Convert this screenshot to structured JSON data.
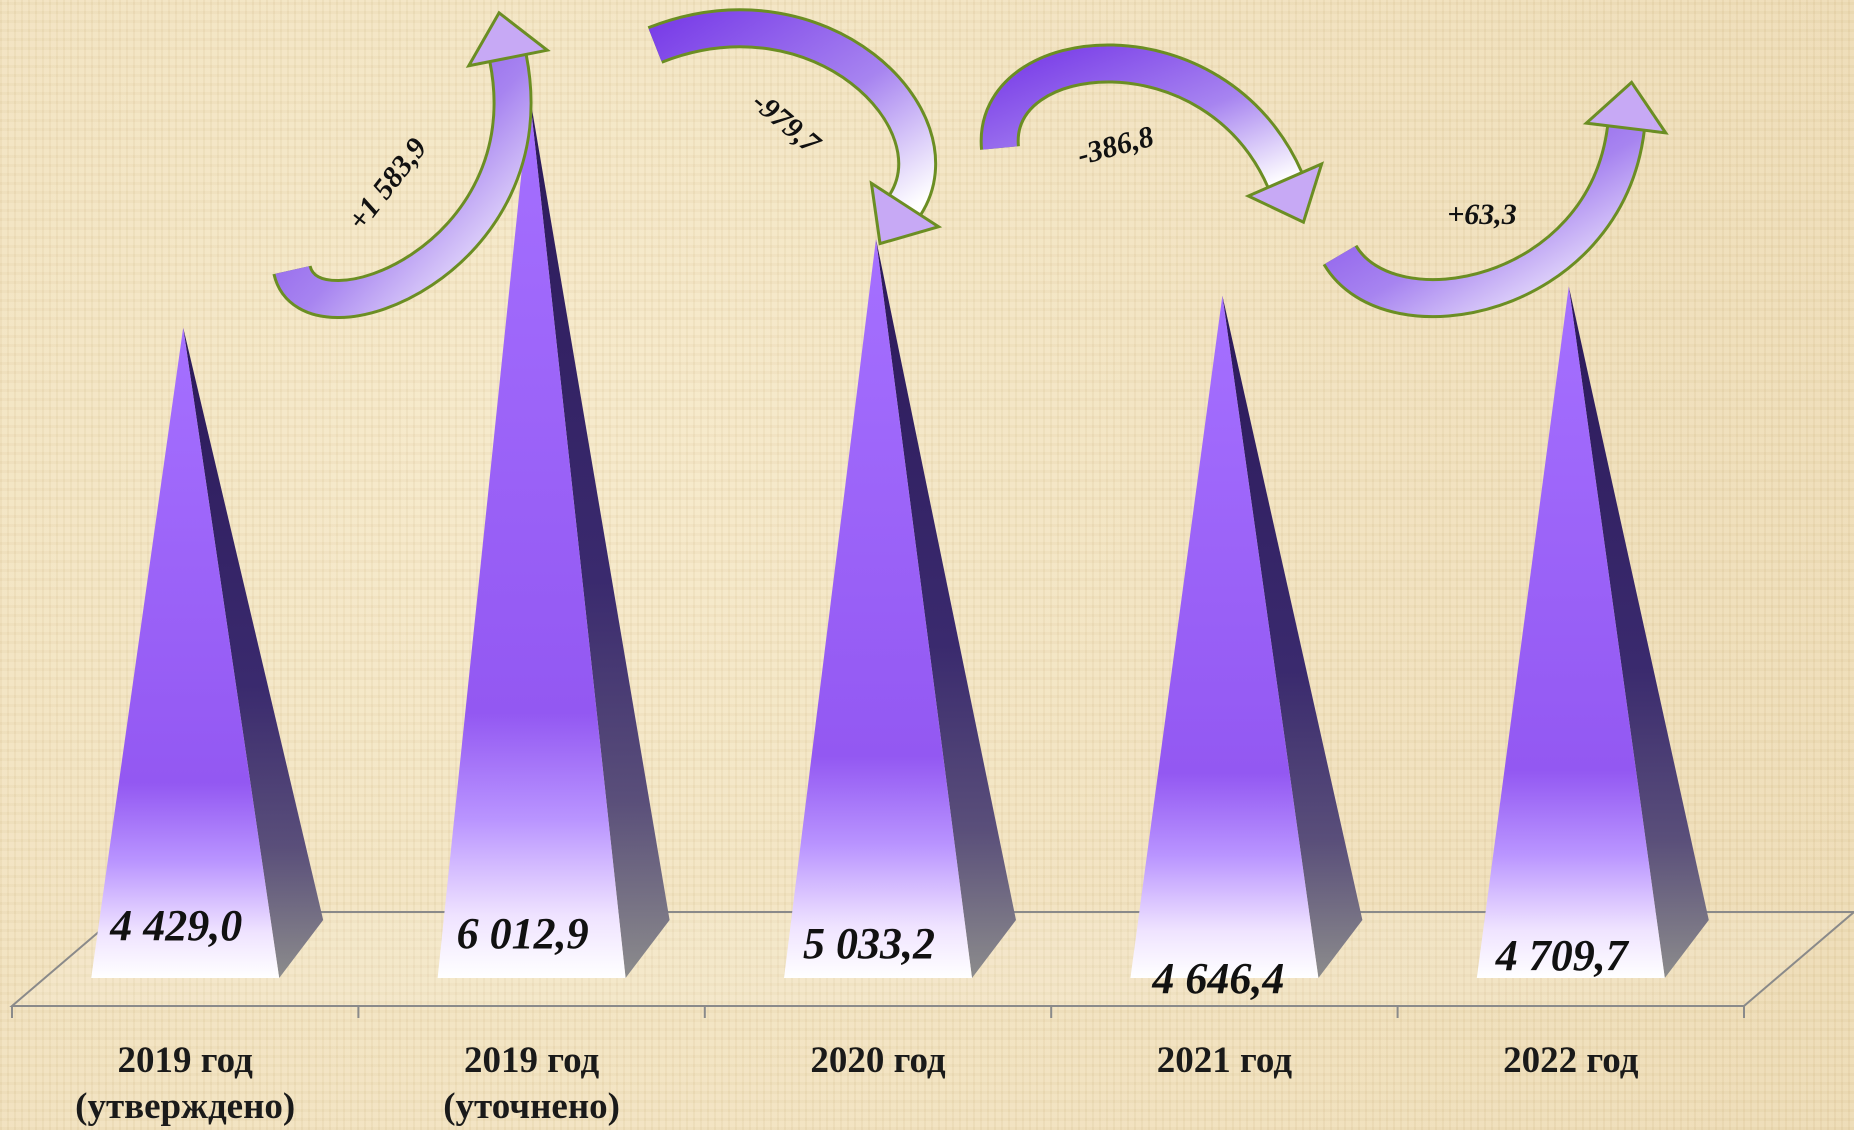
{
  "chart_data": {
    "type": "bar",
    "categories": [
      [
        "2019 год",
        "(утверждено)"
      ],
      [
        "2019 год",
        "(уточнено)"
      ],
      [
        "2020 год",
        ""
      ],
      [
        "2021 год",
        ""
      ],
      [
        "2022 год",
        ""
      ]
    ],
    "values": [
      4429.0,
      6012.9,
      5033.2,
      4646.4,
      4709.7
    ],
    "value_labels": [
      "4 429,0",
      "6 012,9",
      "5 033,2",
      "4 646,4",
      "4 709,7"
    ],
    "changes": [
      {
        "from": 0,
        "to": 1,
        "label": "+1 583,9",
        "direction": "up"
      },
      {
        "from": 1,
        "to": 2,
        "label": "-979,7",
        "direction": "down"
      },
      {
        "from": 2,
        "to": 3,
        "label": "-386,8",
        "direction": "down"
      },
      {
        "from": 3,
        "to": 4,
        "label": "+63,3",
        "direction": "up"
      }
    ],
    "ylim": [
      0,
      6012.9
    ],
    "grid": false,
    "legend": "none",
    "mark_shape": "pyramid",
    "colors": {
      "pyramid_light": "#a570ff",
      "pyramid_mid": "#9560f4",
      "pyramid_dark": "#2e1c5e",
      "pyramid_base": "#ffffff",
      "arrow_fill": "#8a4ff0",
      "arrow_outline": "#6b8e23",
      "axis": "#8a8a8a"
    }
  }
}
